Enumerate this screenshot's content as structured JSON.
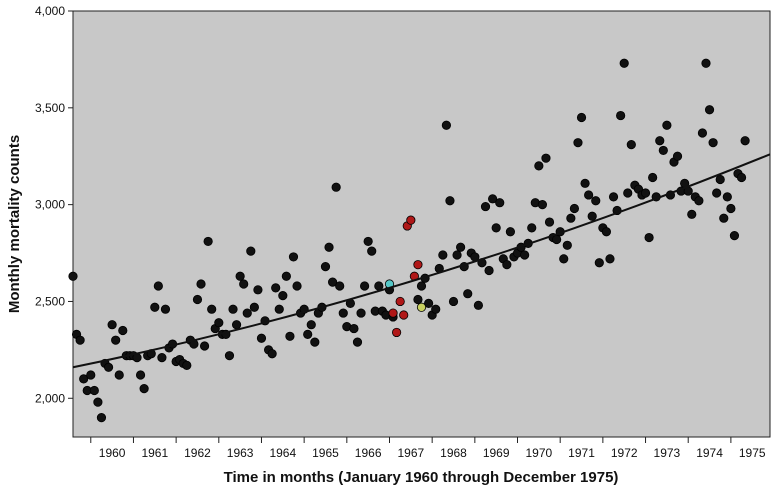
{
  "chart_data": {
    "type": "scatter",
    "title": "",
    "xlabel": "Time in months (January 1960 through December 1975)",
    "ylabel": "Monthly mortality counts",
    "xlim": [
      "1959-08",
      "1975-12"
    ],
    "ylim": [
      1800,
      4000
    ],
    "x_tick_labels": [
      "1960",
      "1961",
      "1962",
      "1963",
      "1964",
      "1965",
      "1966",
      "1967",
      "1968",
      "1969",
      "1970",
      "1971",
      "1972",
      "1973",
      "1974",
      "1975"
    ],
    "y_ticks": [
      2000,
      2500,
      3000,
      3500,
      4000
    ],
    "y_tick_labels": [
      "2,000",
      "2,500",
      "3,000",
      "3,500",
      "4,000"
    ],
    "grid": false,
    "background_color": "#c8c8c8",
    "point_color": "#111111",
    "trend": {
      "type": "curve",
      "points": [
        [
          "1959-08",
          2160
        ],
        [
          "1967-10",
          2620
        ],
        [
          "1975-12",
          3260
        ]
      ]
    },
    "series": [
      {
        "color": "#111111",
        "points": [
          [
            "1959-08",
            2630
          ],
          [
            "1959-09",
            2330
          ],
          [
            "1959-10",
            2300
          ],
          [
            "1959-11",
            2100
          ],
          [
            "1959-12",
            2040
          ],
          [
            "1960-01",
            2120
          ],
          [
            "1960-02",
            2040
          ],
          [
            "1960-03",
            1980
          ],
          [
            "1960-04",
            1900
          ],
          [
            "1960-05",
            2180
          ],
          [
            "1960-06",
            2160
          ],
          [
            "1960-07",
            2380
          ],
          [
            "1960-08",
            2300
          ],
          [
            "1960-09",
            2120
          ],
          [
            "1960-10",
            2350
          ],
          [
            "1960-11",
            2220
          ],
          [
            "1960-12",
            2220
          ],
          [
            "1961-01",
            2220
          ],
          [
            "1961-02",
            2210
          ],
          [
            "1961-03",
            2120
          ],
          [
            "1961-04",
            2050
          ],
          [
            "1961-05",
            2220
          ],
          [
            "1961-06",
            2230
          ],
          [
            "1961-07",
            2470
          ],
          [
            "1961-08",
            2580
          ],
          [
            "1961-09",
            2210
          ],
          [
            "1961-10",
            2460
          ],
          [
            "1961-11",
            2260
          ],
          [
            "1961-12",
            2280
          ],
          [
            "1962-01",
            2190
          ],
          [
            "1962-02",
            2200
          ],
          [
            "1962-03",
            2180
          ],
          [
            "1962-04",
            2170
          ],
          [
            "1962-05",
            2300
          ],
          [
            "1962-06",
            2280
          ],
          [
            "1962-07",
            2510
          ],
          [
            "1962-08",
            2590
          ],
          [
            "1962-09",
            2270
          ],
          [
            "1962-10",
            2810
          ],
          [
            "1962-11",
            2460
          ],
          [
            "1962-12",
            2360
          ],
          [
            "1963-01",
            2390
          ],
          [
            "1963-02",
            2330
          ],
          [
            "1963-03",
            2330
          ],
          [
            "1963-04",
            2220
          ],
          [
            "1963-05",
            2460
          ],
          [
            "1963-06",
            2380
          ],
          [
            "1963-07",
            2630
          ],
          [
            "1963-08",
            2590
          ],
          [
            "1963-09",
            2440
          ],
          [
            "1963-10",
            2760
          ],
          [
            "1963-11",
            2470
          ],
          [
            "1963-12",
            2560
          ],
          [
            "1964-01",
            2310
          ],
          [
            "1964-02",
            2400
          ],
          [
            "1964-03",
            2250
          ],
          [
            "1964-04",
            2230
          ],
          [
            "1964-05",
            2570
          ],
          [
            "1964-06",
            2460
          ],
          [
            "1964-07",
            2530
          ],
          [
            "1964-08",
            2630
          ],
          [
            "1964-09",
            2320
          ],
          [
            "1964-10",
            2730
          ],
          [
            "1964-11",
            2580
          ],
          [
            "1964-12",
            2440
          ],
          [
            "1965-01",
            2460
          ],
          [
            "1965-02",
            2330
          ],
          [
            "1965-03",
            2380
          ],
          [
            "1965-04",
            2290
          ],
          [
            "1965-05",
            2440
          ],
          [
            "1965-06",
            2470
          ],
          [
            "1965-07",
            2680
          ],
          [
            "1965-08",
            2780
          ],
          [
            "1965-09",
            2600
          ],
          [
            "1965-10",
            3090
          ],
          [
            "1965-11",
            2580
          ],
          [
            "1965-12",
            2440
          ],
          [
            "1966-01",
            2370
          ],
          [
            "1966-02",
            2490
          ],
          [
            "1966-03",
            2360
          ],
          [
            "1966-04",
            2290
          ],
          [
            "1966-05",
            2440
          ],
          [
            "1966-06",
            2580
          ],
          [
            "1966-07",
            2810
          ],
          [
            "1966-08",
            2760
          ],
          [
            "1966-09",
            2450
          ],
          [
            "1966-10",
            2580
          ],
          [
            "1966-11",
            2450
          ],
          [
            "1966-12",
            2430
          ],
          [
            "1967-01",
            2560
          ],
          [
            "1967-02",
            2420
          ],
          [
            "1967-09",
            2510
          ],
          [
            "1967-10",
            2580
          ],
          [
            "1967-11",
            2620
          ],
          [
            "1967-12",
            2490
          ],
          [
            "1968-01",
            2430
          ],
          [
            "1968-02",
            2460
          ],
          [
            "1968-03",
            2670
          ],
          [
            "1968-04",
            2740
          ],
          [
            "1968-05",
            3410
          ],
          [
            "1968-06",
            3020
          ],
          [
            "1968-07",
            2500
          ],
          [
            "1968-08",
            2740
          ],
          [
            "1968-09",
            2780
          ],
          [
            "1968-10",
            2680
          ],
          [
            "1968-11",
            2540
          ],
          [
            "1968-12",
            2750
          ],
          [
            "1969-01",
            2730
          ],
          [
            "1969-02",
            2480
          ],
          [
            "1969-03",
            2700
          ],
          [
            "1969-04",
            2990
          ],
          [
            "1969-05",
            2660
          ],
          [
            "1969-06",
            3030
          ],
          [
            "1969-07",
            2880
          ],
          [
            "1969-08",
            3010
          ],
          [
            "1969-09",
            2720
          ],
          [
            "1969-10",
            2690
          ],
          [
            "1969-11",
            2860
          ],
          [
            "1969-12",
            2730
          ],
          [
            "1970-01",
            2750
          ],
          [
            "1970-02",
            2780
          ],
          [
            "1970-03",
            2740
          ],
          [
            "1970-04",
            2800
          ],
          [
            "1970-05",
            2880
          ],
          [
            "1970-06",
            3010
          ],
          [
            "1970-07",
            3200
          ],
          [
            "1970-08",
            3000
          ],
          [
            "1970-09",
            3240
          ],
          [
            "1970-10",
            2910
          ],
          [
            "1970-11",
            2830
          ],
          [
            "1970-12",
            2820
          ],
          [
            "1971-01",
            2860
          ],
          [
            "1971-02",
            2720
          ],
          [
            "1971-03",
            2790
          ],
          [
            "1971-04",
            2930
          ],
          [
            "1971-05",
            2980
          ],
          [
            "1971-06",
            3320
          ],
          [
            "1971-07",
            3450
          ],
          [
            "1971-08",
            3110
          ],
          [
            "1971-09",
            3050
          ],
          [
            "1971-10",
            2940
          ],
          [
            "1971-11",
            3020
          ],
          [
            "1971-12",
            2700
          ],
          [
            "1972-01",
            2880
          ],
          [
            "1972-02",
            2860
          ],
          [
            "1972-03",
            2720
          ],
          [
            "1972-04",
            3040
          ],
          [
            "1972-05",
            2970
          ],
          [
            "1972-06",
            3460
          ],
          [
            "1972-07",
            3730
          ],
          [
            "1972-08",
            3060
          ],
          [
            "1972-09",
            3310
          ],
          [
            "1972-10",
            3100
          ],
          [
            "1972-11",
            3080
          ],
          [
            "1972-12",
            3050
          ],
          [
            "1973-01",
            3060
          ],
          [
            "1973-02",
            2830
          ],
          [
            "1973-03",
            3140
          ],
          [
            "1973-04",
            3040
          ],
          [
            "1973-05",
            3330
          ],
          [
            "1973-06",
            3280
          ],
          [
            "1973-07",
            3410
          ],
          [
            "1973-08",
            3050
          ],
          [
            "1973-09",
            3220
          ],
          [
            "1973-10",
            3250
          ],
          [
            "1973-11",
            3070
          ],
          [
            "1973-12",
            3110
          ],
          [
            "1974-01",
            3070
          ],
          [
            "1974-02",
            2950
          ],
          [
            "1974-03",
            3040
          ],
          [
            "1974-04",
            3020
          ],
          [
            "1974-05",
            3370
          ],
          [
            "1974-06",
            3730
          ],
          [
            "1974-07",
            3490
          ],
          [
            "1974-08",
            3320
          ],
          [
            "1974-09",
            3060
          ],
          [
            "1974-10",
            3130
          ],
          [
            "1974-11",
            2930
          ],
          [
            "1974-12",
            3040
          ],
          [
            "1975-01",
            2980
          ],
          [
            "1975-02",
            2840
          ],
          [
            "1975-03",
            3160
          ],
          [
            "1975-04",
            3140
          ],
          [
            "1975-05",
            3330
          ]
        ]
      },
      {
        "color": "#b01818",
        "points": [
          [
            "1967-02",
            2440
          ],
          [
            "1967-03",
            2340
          ],
          [
            "1967-04",
            2500
          ],
          [
            "1967-05",
            2430
          ],
          [
            "1967-06",
            2890
          ],
          [
            "1967-07",
            2920
          ],
          [
            "1967-08",
            2630
          ],
          [
            "1967-09",
            2690
          ]
        ]
      },
      {
        "color": "#55c8c8",
        "points": [
          [
            "1967-01",
            2590
          ]
        ]
      },
      {
        "color": "#c8d060",
        "points": [
          [
            "1967-10",
            2470
          ]
        ]
      }
    ]
  }
}
